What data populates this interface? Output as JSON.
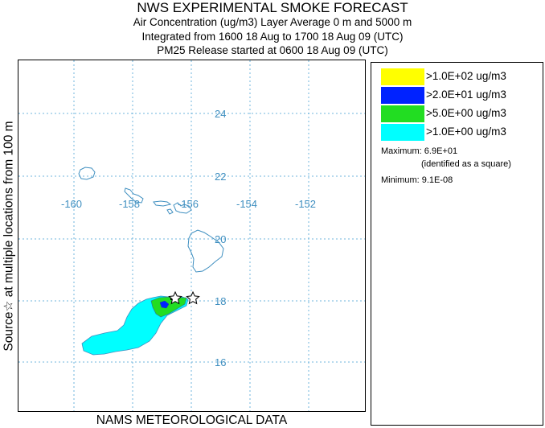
{
  "header": {
    "title": "NWS EXPERIMENTAL SMOKE FORECAST",
    "line1": "Air Concentration (ug/m3) Layer Average    0 m and  5000 m",
    "line2": "Integrated from 1600 18 Aug to 1700 18 Aug 09 (UTC)",
    "line3": "PM25 Release started at 0600 18 Aug 09 (UTC)"
  },
  "side_label": "Source☆ at multiple locations   from  100 m",
  "footer": "NAMS METEOROLOGICAL DATA",
  "map": {
    "longitudes": [
      "-160",
      "-158",
      "-156",
      "-154",
      "-152"
    ],
    "latitudes": [
      "24",
      "22",
      "20",
      "18",
      "16"
    ],
    "grid_color": "#6fb4dc",
    "coast_color": "#3f8fc0",
    "label_color": "#3f8fc0",
    "source_marker": "star-icon"
  },
  "legend": {
    "items": [
      {
        "label": ">1.0E+02 ug/m3",
        "color": "#ffff00"
      },
      {
        "label": ">2.0E+01 ug/m3",
        "color": "#0022ff"
      },
      {
        "label": ">5.0E+00 ug/m3",
        "color": "#22dd22"
      },
      {
        "label": ">1.0E+00 ug/m3",
        "color": "#00ffff"
      }
    ],
    "maximum": "Maximum: 6.9E+01",
    "maximum_note": "(identified as a square)",
    "minimum": "Minimum: 9.1E-08"
  }
}
